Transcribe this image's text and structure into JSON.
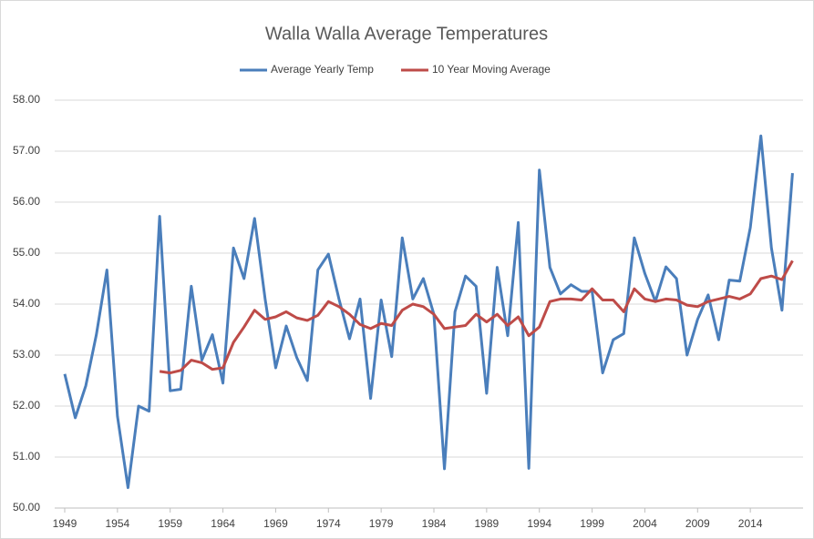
{
  "chart_data": {
    "type": "line",
    "title": "Walla Walla Average Temperatures",
    "x": [
      1949,
      1950,
      1951,
      1952,
      1953,
      1954,
      1955,
      1956,
      1957,
      1958,
      1959,
      1960,
      1961,
      1962,
      1963,
      1964,
      1965,
      1966,
      1967,
      1968,
      1969,
      1970,
      1971,
      1972,
      1973,
      1974,
      1975,
      1976,
      1977,
      1978,
      1979,
      1980,
      1981,
      1982,
      1983,
      1984,
      1985,
      1986,
      1987,
      1988,
      1989,
      1990,
      1991,
      1992,
      1993,
      1994,
      1995,
      1996,
      1997,
      1998,
      1999,
      2000,
      2001,
      2002,
      2003,
      2004,
      2005,
      2006,
      2007,
      2008,
      2009,
      2010,
      2011,
      2012,
      2013,
      2014,
      2015,
      2016,
      2017,
      2018
    ],
    "series": [
      {
        "name": "Average Yearly Temp",
        "color": "#4a7ebb",
        "values": [
          52.63,
          51.77,
          52.4,
          53.4,
          54.67,
          51.8,
          50.4,
          52.0,
          51.9,
          55.72,
          52.3,
          52.33,
          54.35,
          52.9,
          53.4,
          52.45,
          55.1,
          54.5,
          55.68,
          54.1,
          52.75,
          53.57,
          52.95,
          52.5,
          54.67,
          54.98,
          54.1,
          53.32,
          54.1,
          52.15,
          54.08,
          52.97,
          55.3,
          54.1,
          54.5,
          53.8,
          50.77,
          53.85,
          54.55,
          54.35,
          52.25,
          54.72,
          53.38,
          55.6,
          50.78,
          56.63,
          54.72,
          54.2,
          54.38,
          54.25,
          54.25,
          52.65,
          53.3,
          53.42,
          55.3,
          54.6,
          54.05,
          54.73,
          54.5,
          53.0,
          53.7,
          54.18,
          53.3,
          54.47,
          54.45,
          55.5,
          57.3,
          55.1,
          53.88,
          56.57
        ]
      },
      {
        "name": "10 Year Moving Average",
        "color": "#be4b48",
        "values": [
          null,
          null,
          null,
          null,
          null,
          null,
          null,
          null,
          null,
          52.68,
          52.65,
          52.7,
          52.9,
          52.85,
          52.72,
          52.75,
          53.25,
          53.55,
          53.88,
          53.7,
          53.75,
          53.85,
          53.73,
          53.68,
          53.78,
          54.05,
          53.95,
          53.8,
          53.6,
          53.52,
          53.62,
          53.58,
          53.88,
          54.0,
          53.95,
          53.8,
          53.52,
          53.55,
          53.58,
          53.8,
          53.65,
          53.8,
          53.58,
          53.75,
          53.38,
          53.55,
          54.05,
          54.1,
          54.1,
          54.08,
          54.3,
          54.08,
          54.08,
          53.85,
          54.3,
          54.1,
          54.05,
          54.1,
          54.08,
          53.98,
          53.95,
          54.05,
          54.1,
          54.15,
          54.1,
          54.2,
          54.5,
          54.55,
          54.48,
          54.85
        ]
      }
    ],
    "xlim": [
      1949,
      2019
    ],
    "xticks": [
      1949,
      1954,
      1959,
      1964,
      1969,
      1974,
      1979,
      1984,
      1989,
      1994,
      1999,
      2004,
      2009,
      2014
    ],
    "ylim": [
      50,
      58
    ],
    "yticks": [
      {
        "value": 50,
        "label": "50.00"
      },
      {
        "value": 51,
        "label": "51.00"
      },
      {
        "value": 52,
        "label": "52.00"
      },
      {
        "value": 53,
        "label": "53.00"
      },
      {
        "value": 54,
        "label": "54.00"
      },
      {
        "value": 55,
        "label": "55.00"
      },
      {
        "value": 56,
        "label": "56.00"
      },
      {
        "value": 57,
        "label": "57.00"
      },
      {
        "value": 58,
        "label": "58.00"
      }
    ],
    "grid": true,
    "legend": "top"
  }
}
